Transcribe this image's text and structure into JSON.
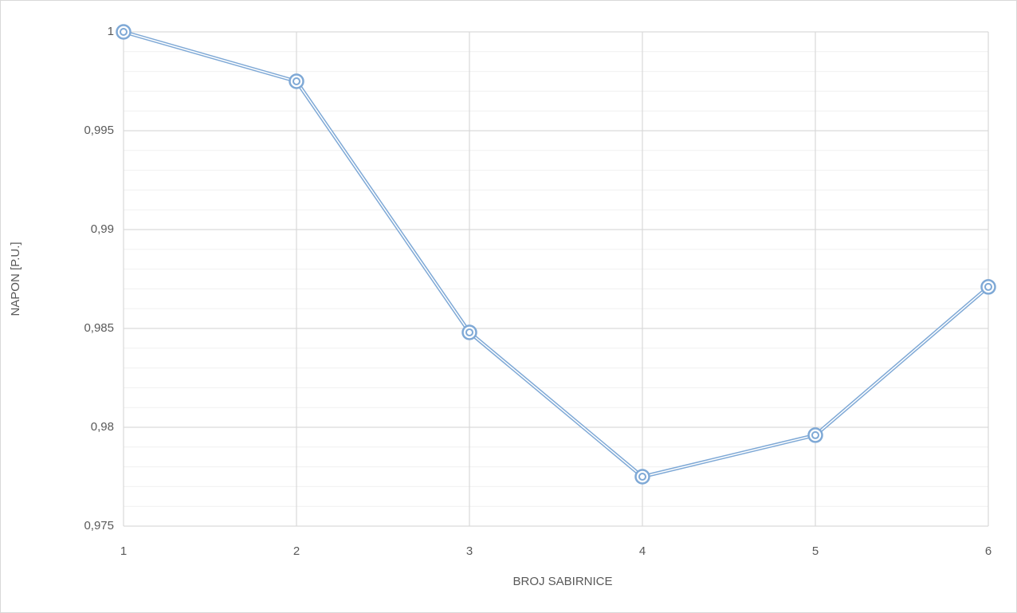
{
  "chart_data": {
    "type": "line",
    "x_label": "BROJ SABIRNICE",
    "y_label": "NAPON [P.U.]",
    "x": [
      1,
      2,
      3,
      4,
      5,
      6
    ],
    "series": [
      {
        "name": "Napon",
        "color": "#7fa9d6",
        "values": [
          1,
          0.9975,
          0.9848,
          0.9775,
          0.9796,
          0.9871
        ]
      }
    ],
    "xlim": [
      1,
      6
    ],
    "xticks": [
      1,
      2,
      3,
      4,
      5,
      6
    ],
    "ylim": [
      0.975,
      1
    ],
    "yticks": [
      {
        "value": 0.975,
        "label": "0,975"
      },
      {
        "value": 0.98,
        "label": "0,98"
      },
      {
        "value": 0.985,
        "label": "0,985"
      },
      {
        "value": 0.99,
        "label": "0,99"
      },
      {
        "value": 0.995,
        "label": "0,995"
      },
      1
    ],
    "y_minor_ticks": [
      0.976,
      0.977,
      0.978,
      0.979,
      0.981,
      0.982,
      0.983,
      0.984,
      0.986,
      0.987,
      0.988,
      0.989,
      0.991,
      0.992,
      0.993,
      0.994,
      0.996,
      0.997,
      0.998,
      0.999
    ],
    "grid": true
  }
}
